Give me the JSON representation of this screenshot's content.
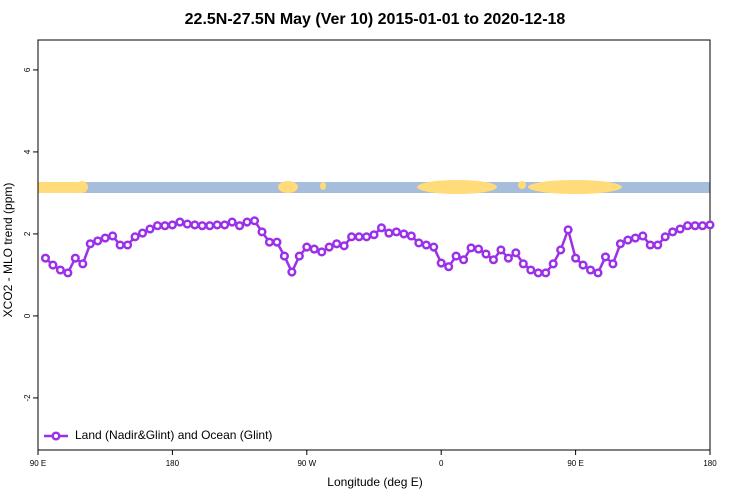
{
  "chart_data": {
    "type": "line",
    "title": "22.5N-27.5N May (Ver 10)   2015-01-01 to 2020-12-18",
    "x_label": "Longitude (deg E)",
    "y_label": "XCO2 - MLO trend (ppm)",
    "x": [
      95,
      100,
      105,
      110,
      115,
      120,
      125,
      130,
      135,
      140,
      145,
      150,
      155,
      160,
      165,
      170,
      175,
      180,
      185,
      190,
      195,
      200,
      205,
      210,
      215,
      220,
      225,
      230,
      235,
      240,
      245,
      250,
      255,
      260,
      265,
      270,
      275,
      280,
      285,
      290,
      295,
      300,
      305,
      310,
      315,
      320,
      325,
      330,
      335,
      340,
      345,
      350,
      355,
      360,
      365,
      370,
      375,
      380,
      385,
      390,
      395,
      400,
      405,
      410,
      415,
      420,
      425,
      430,
      435,
      440,
      445,
      450,
      455,
      460,
      465,
      470,
      475,
      480,
      485,
      490,
      495,
      500,
      505,
      510,
      515,
      520,
      525,
      530,
      535,
      540
    ],
    "series": [
      {
        "name": "Land (Nadir&Glint) and Ocean (Glint)",
        "color": "#9b30e8",
        "values": [
          1.41,
          1.24,
          1.12,
          1.05,
          1.41,
          1.27,
          1.76,
          1.83,
          1.9,
          1.95,
          1.73,
          1.73,
          1.93,
          2.02,
          2.12,
          2.2,
          2.2,
          2.22,
          2.29,
          2.24,
          2.22,
          2.2,
          2.2,
          2.22,
          2.22,
          2.29,
          2.2,
          2.29,
          2.32,
          2.05,
          1.8,
          1.8,
          1.46,
          1.07,
          1.46,
          1.68,
          1.63,
          1.56,
          1.68,
          1.76,
          1.71,
          1.93,
          1.93,
          1.93,
          1.98,
          2.15,
          2.02,
          2.05,
          2.0,
          1.95,
          1.78,
          1.73,
          1.68,
          1.29,
          1.2,
          1.46,
          1.37,
          1.66,
          1.63,
          1.51,
          1.37,
          1.61,
          1.41,
          1.54,
          1.27,
          1.12,
          1.05,
          1.05,
          1.27,
          1.61,
          2.1,
          1.41,
          1.24,
          1.12,
          1.05,
          1.44,
          1.27,
          1.76,
          1.85,
          1.9,
          1.95,
          1.73,
          1.73,
          1.93,
          2.05,
          2.12,
          2.2,
          2.2,
          2.2,
          2.22
        ]
      }
    ],
    "xlim": [
      90,
      540
    ],
    "xticks": [
      {
        "value": 90,
        "label": "90 E"
      },
      180,
      {
        "value": 270,
        "label": "90 W"
      },
      {
        "value": 360,
        "label": "0"
      },
      {
        "value": 450,
        "label": "90 E"
      },
      {
        "value": 540,
        "label": "180"
      }
    ],
    "ylim": [
      -3.27,
      6.73
    ],
    "yticks": [
      -2,
      0,
      2,
      4,
      6
    ],
    "legend": "bottom-left"
  }
}
